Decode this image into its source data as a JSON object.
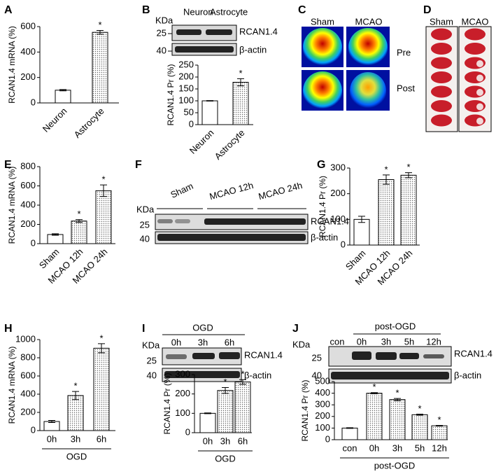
{
  "panel_labels": [
    "A",
    "B",
    "C",
    "D",
    "E",
    "F",
    "G",
    "H",
    "I",
    "J"
  ],
  "chart_data": [
    {
      "type": "bar",
      "ylabel": "RCAN1.4 mRNA (%)",
      "categories": [
        "Neuron",
        "Astrocyte"
      ],
      "values": [
        100,
        555
      ],
      "errors": [
        5,
        15
      ],
      "stars": [
        null,
        "*"
      ],
      "ylim": [
        0,
        600
      ],
      "yticks": [
        0,
        200,
        400,
        600
      ]
    },
    {
      "type": "bar",
      "ylabel": "RCAN1.4 Pr (%)",
      "categories": [
        "Neuron",
        "Astrocyte"
      ],
      "values": [
        100,
        178
      ],
      "errors": [
        1,
        15
      ],
      "stars": [
        null,
        "*"
      ],
      "ylim": [
        0,
        250
      ],
      "yticks": [
        0,
        50,
        100,
        150,
        200,
        250
      ]
    },
    {
      "type": "bar",
      "ylabel": "RCAN1.4 mRNA (%)",
      "categories": [
        "Sham",
        "MCAO 12h",
        "MCAO 24h"
      ],
      "values": [
        95,
        235,
        550
      ],
      "errors": [
        8,
        15,
        60
      ],
      "stars": [
        null,
        "*",
        "*"
      ],
      "ylim": [
        0,
        800
      ],
      "yticks": [
        0,
        200,
        400,
        600,
        800
      ]
    },
    {
      "type": "bar",
      "ylabel": "RCAN1.4 Pr (%)",
      "categories": [
        "Sham",
        "MCAO 12h",
        "MCAO 24h"
      ],
      "values": [
        100,
        255,
        272
      ],
      "errors": [
        12,
        18,
        10
      ],
      "stars": [
        null,
        "*",
        "*"
      ],
      "ylim": [
        0,
        300
      ],
      "yticks": [
        0,
        100,
        200,
        300
      ]
    },
    {
      "type": "bar",
      "ylabel": "RCAN1.4 mRNA (%)",
      "xlabel": "OGD",
      "categories": [
        "0h",
        "3h",
        "6h"
      ],
      "values": [
        100,
        385,
        905
      ],
      "errors": [
        12,
        45,
        50
      ],
      "stars": [
        null,
        "*",
        "*"
      ],
      "ylim": [
        0,
        1000
      ],
      "yticks": [
        0,
        200,
        400,
        600,
        800,
        1000
      ]
    },
    {
      "type": "bar",
      "ylabel": "RCAN1.4 Pr (%)",
      "xlabel": "OGD",
      "categories": [
        "0h",
        "3h",
        "6h"
      ],
      "values": [
        100,
        218,
        262
      ],
      "errors": [
        2,
        15,
        12
      ],
      "stars": [
        null,
        "*",
        "*"
      ],
      "ylim": [
        0,
        300
      ],
      "yticks": [
        0,
        100,
        200,
        300
      ]
    },
    {
      "type": "bar",
      "ylabel": "RCAN1.4 Pr (%)",
      "xlabel": "post-OGD",
      "categories": [
        "con",
        "0h",
        "3h",
        "5h",
        "12h"
      ],
      "values": [
        100,
        400,
        345,
        215,
        120
      ],
      "errors": [
        3,
        5,
        10,
        5,
        3
      ],
      "stars": [
        null,
        "*",
        "*",
        "*",
        "*"
      ],
      "ylim": [
        0,
        500
      ],
      "yticks": [
        0,
        100,
        200,
        300,
        400,
        500
      ]
    }
  ],
  "blots": {
    "B": {
      "unit": "KDa",
      "markers": [
        "25",
        "40"
      ],
      "lanes": [
        "Neuron",
        "Astrocyte"
      ],
      "bands": [
        "RCAN1.4",
        "β-actin"
      ]
    },
    "F": {
      "unit": "KDa",
      "markers": [
        "25",
        "40"
      ],
      "groups": [
        "Sham",
        "MCAO 12h",
        "MCAO 24h"
      ],
      "bands": [
        "RCAN1.4",
        "β-actin"
      ]
    },
    "I": {
      "title": "OGD",
      "unit": "KDa",
      "markers": [
        "25",
        "40"
      ],
      "lanes": [
        "0h",
        "3h",
        "6h"
      ],
      "bands": [
        "RCAN1.4",
        "β-actin"
      ]
    },
    "J": {
      "title": "post-OGD",
      "unit": "KDa",
      "markers": [
        "25",
        "40"
      ],
      "lanes": [
        "con",
        "0h",
        "3h",
        "5h",
        "12h"
      ],
      "bands": [
        "RCAN1.4",
        "β-actin"
      ]
    }
  },
  "images": {
    "C": {
      "columns": [
        "Sham",
        "MCAO"
      ],
      "rows": [
        "Pre",
        "Post"
      ]
    },
    "D": {
      "columns": [
        "Sham",
        "MCAO"
      ]
    }
  }
}
